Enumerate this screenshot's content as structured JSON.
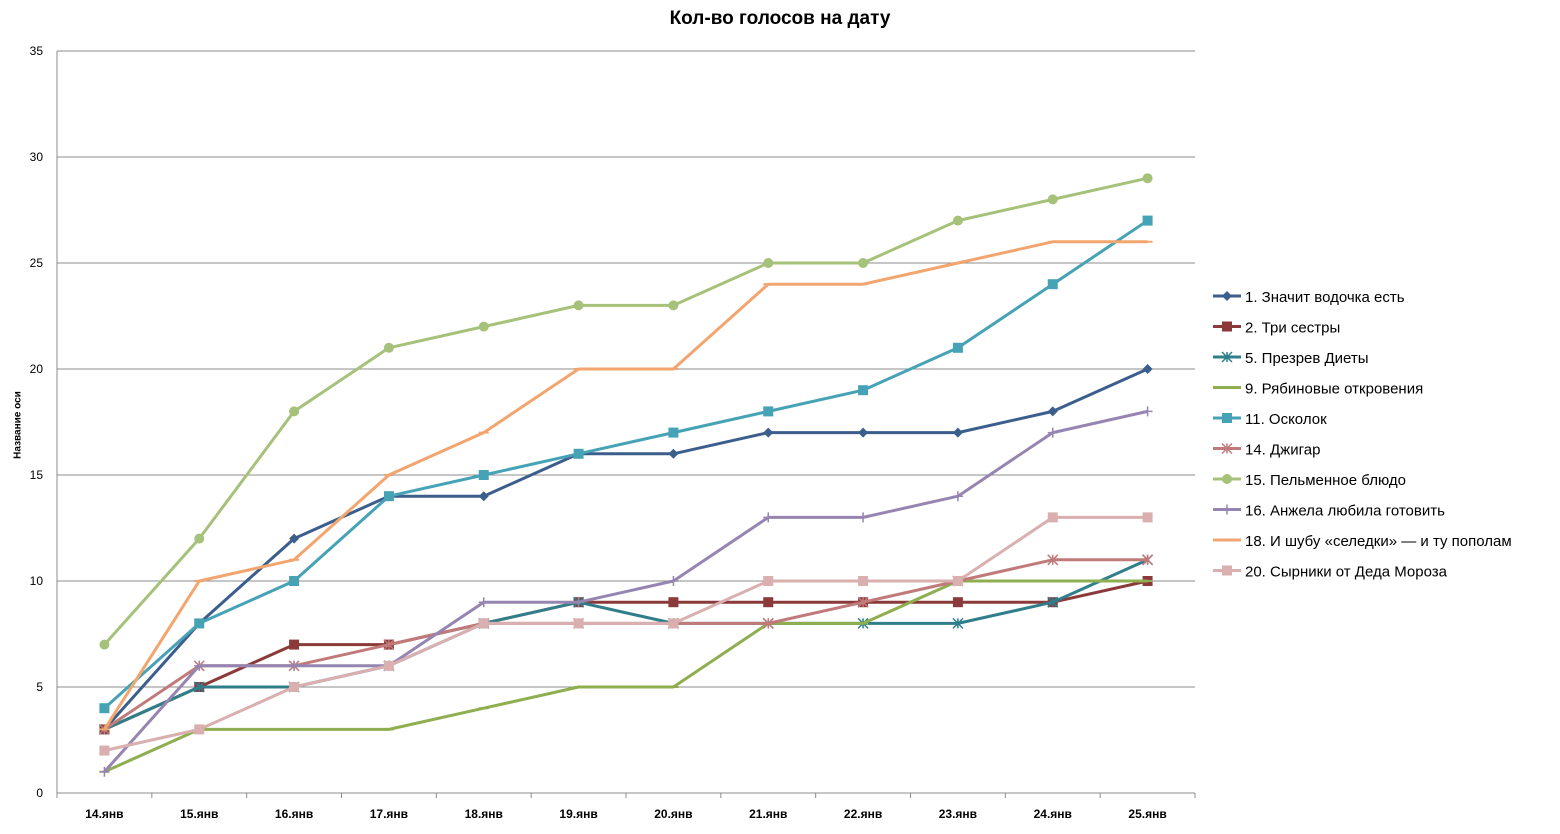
{
  "chart_data": {
    "type": "line",
    "title": "Кол-во голосов на дату",
    "xlabel": "",
    "ylabel": "Название оси",
    "ylim": [
      0,
      35
    ],
    "yticks": [
      0,
      5,
      10,
      15,
      20,
      25,
      30,
      35
    ],
    "grid": true,
    "legend_position": "right",
    "categories": [
      "14.янв",
      "15.янв",
      "16.янв",
      "17.янв",
      "18.янв",
      "19.янв",
      "20.янв",
      "21.янв",
      "22.янв",
      "23.янв",
      "24.янв",
      "25.янв"
    ],
    "series": [
      {
        "name": "1. Значит водочка есть",
        "color": "#3B5E8C",
        "marker": "diamond",
        "values": [
          3,
          8,
          12,
          14,
          14,
          16,
          16,
          17,
          17,
          17,
          18,
          20
        ]
      },
      {
        "name": "2. Три сестры",
        "color": "#8B3A3A",
        "marker": "square",
        "values": [
          3,
          5,
          7,
          7,
          8,
          9,
          9,
          9,
          9,
          9,
          9,
          10
        ]
      },
      {
        "name": "5. Презрев Диеты",
        "color": "#2F7E8A",
        "marker": "star",
        "values": [
          3,
          5,
          5,
          6,
          8,
          9,
          8,
          8,
          8,
          8,
          9,
          11
        ]
      },
      {
        "name": "9. Рябиновые откровения",
        "color": "#8FAE4F",
        "marker": "dash",
        "values": [
          1,
          3,
          3,
          3,
          4,
          5,
          5,
          8,
          8,
          10,
          10,
          10
        ]
      },
      {
        "name": "11. Осколок",
        "color": "#46A2B5",
        "marker": "square",
        "values": [
          4,
          8,
          10,
          14,
          15,
          16,
          17,
          18,
          19,
          21,
          24,
          27
        ]
      },
      {
        "name": "14. Джигар",
        "color": "#C17A7A",
        "marker": "star",
        "values": [
          3,
          6,
          6,
          7,
          8,
          8,
          8,
          8,
          9,
          10,
          11,
          11
        ]
      },
      {
        "name": "15. Пельменное блюдо",
        "color": "#A6C17A",
        "marker": "circle",
        "values": [
          7,
          12,
          18,
          21,
          22,
          23,
          23,
          25,
          25,
          27,
          28,
          29
        ]
      },
      {
        "name": "16. Анжела любила готовить",
        "color": "#9685B0",
        "marker": "plus",
        "values": [
          1,
          6,
          6,
          6,
          9,
          9,
          10,
          13,
          13,
          14,
          17,
          18
        ]
      },
      {
        "name": "18. И шубу «селедки» — и ту пополам",
        "color": "#F2A56E",
        "marker": "dash",
        "values": [
          3,
          10,
          11,
          15,
          17,
          20,
          20,
          24,
          24,
          25,
          26,
          26
        ]
      },
      {
        "name": "20. Сырники от Деда Мороза",
        "color": "#D9AFAF",
        "marker": "square",
        "values": [
          2,
          3,
          5,
          6,
          8,
          8,
          8,
          10,
          10,
          10,
          13,
          13
        ]
      }
    ]
  }
}
